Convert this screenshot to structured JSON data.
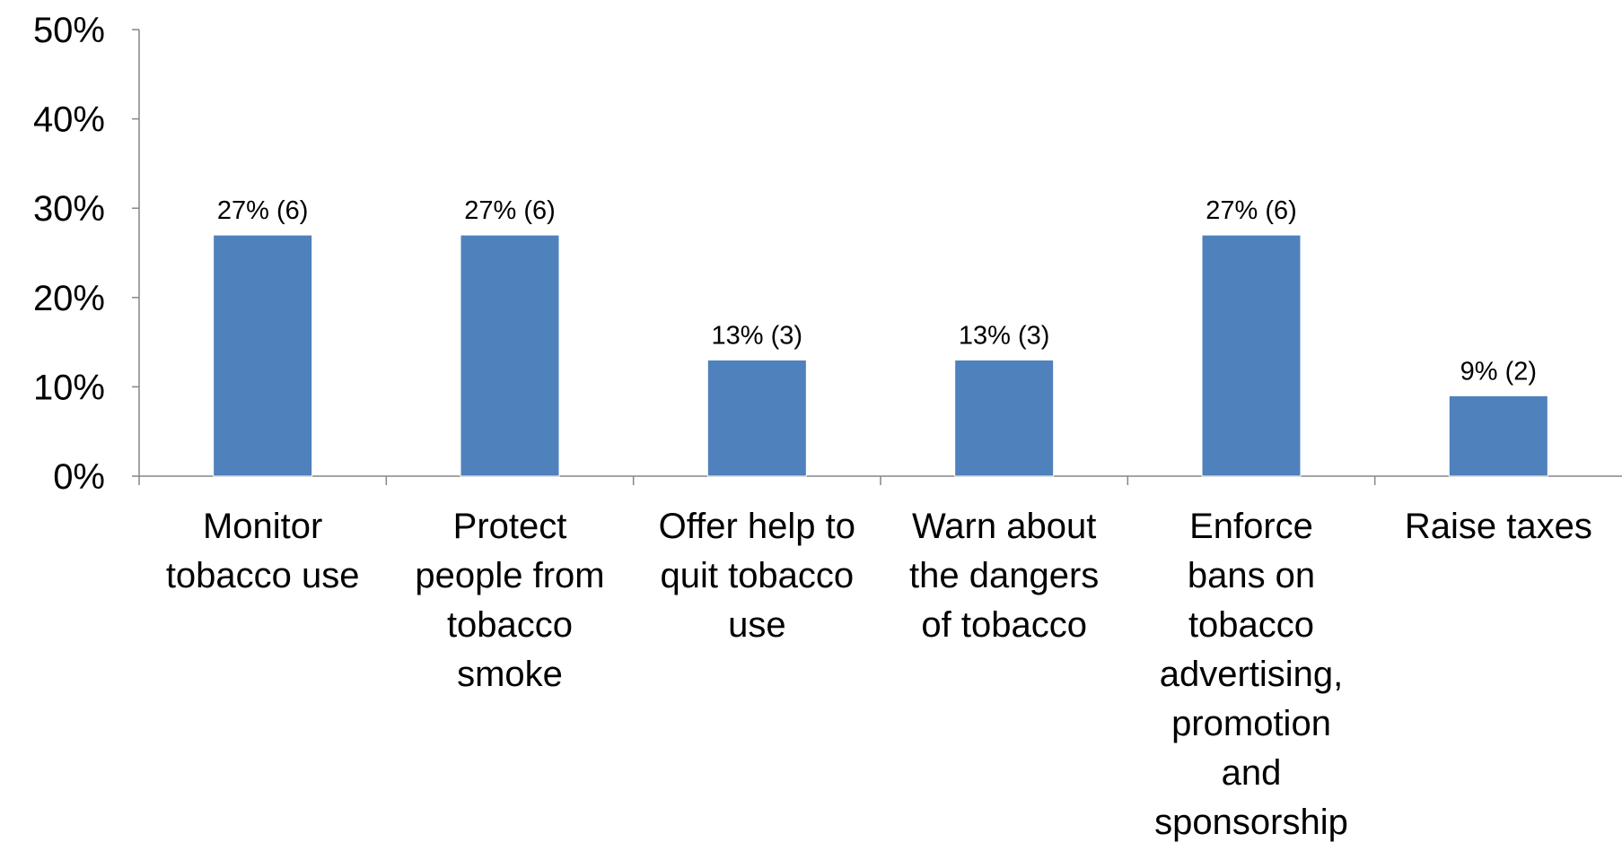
{
  "chart_data": {
    "type": "bar",
    "categories": [
      [
        "Monitor",
        "tobacco use"
      ],
      [
        "Protect",
        "people from",
        "tobacco",
        "smoke"
      ],
      [
        "Offer help to",
        "quit tobacco",
        "use"
      ],
      [
        "Warn about",
        "the dangers",
        "of tobacco"
      ],
      [
        "Enforce",
        "bans on",
        "tobacco",
        "advertising,",
        "promotion",
        "and",
        "sponsorship"
      ],
      [
        "Raise taxes"
      ]
    ],
    "values": [
      27,
      27,
      13,
      13,
      27,
      9
    ],
    "data_labels": [
      "27% (6)",
      "27% (6)",
      "13% (3)",
      "13% (3)",
      "27% (6)",
      "9% (2)"
    ],
    "y_ticks": [
      "0%",
      "10%",
      "20%",
      "30%",
      "40%",
      "50%"
    ],
    "ylim": [
      0,
      50
    ],
    "bar_color": "#4f81bd",
    "axis_color": "#868686",
    "grid": false,
    "legend": "none",
    "title": "",
    "xlabel": "",
    "ylabel": ""
  }
}
